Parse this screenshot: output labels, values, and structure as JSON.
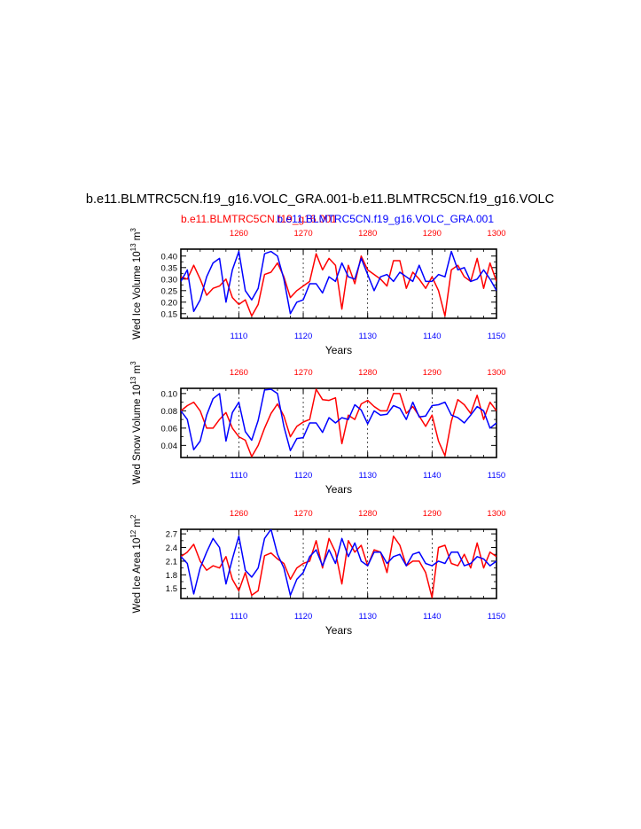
{
  "figure": {
    "title": "b.e11.BLMTRC5CN.f19_g16.VOLC_GRA.001-b.e11.BLMTRC5CN.f19_g16.VOLC",
    "subtitle_left": "b.e11.BLMTRC5CN.f19_g16.001",
    "subtitle_right": "b.e11.BLMTRC5CN.f19_g16.VOLC_GRA.001",
    "colors": {
      "series_a": "#ff0000",
      "series_b": "#0000ff",
      "axes": "#000000"
    }
  },
  "chart_data": [
    {
      "type": "line",
      "ylabel_main": "Wed Ice Volume 10",
      "ylabel_sup": "13",
      "ylabel_unit": " m",
      "ylabel_unit_sup": "3",
      "xlabel": "Years",
      "bottom_axis": {
        "range": [
          1101,
          1150
        ],
        "ticks": [
          "1110",
          "1120",
          "1130",
          "1140",
          "1150"
        ]
      },
      "top_axis": {
        "range": [
          1251,
          1300
        ],
        "ticks": [
          "1260",
          "1270",
          "1280",
          "1290",
          "1300"
        ]
      },
      "ylim": [
        0.13,
        0.43
      ],
      "yticks": [
        "0.15",
        "0.20",
        "0.25",
        "0.30",
        "0.35",
        "0.40"
      ],
      "ytick_values": [
        0.15,
        0.2,
        0.25,
        0.3,
        0.35,
        0.4
      ],
      "grid": "dashed vertical lines at major x ticks",
      "series": [
        {
          "axis": "top",
          "color": "#ff0000",
          "values": [
            0.31,
            0.3,
            0.36,
            0.3,
            0.23,
            0.26,
            0.27,
            0.3,
            0.22,
            0.19,
            0.21,
            0.14,
            0.19,
            0.32,
            0.33,
            0.37,
            0.31,
            0.22,
            0.25,
            0.27,
            0.29,
            0.41,
            0.34,
            0.39,
            0.36,
            0.17,
            0.36,
            0.28,
            0.4,
            0.34,
            0.32,
            0.3,
            0.27,
            0.38,
            0.38,
            0.26,
            0.33,
            0.3,
            0.26,
            0.31,
            0.25,
            0.14,
            0.34,
            0.36,
            0.31,
            0.29,
            0.39,
            0.26,
            0.37,
            0.29
          ]
        },
        {
          "axis": "bottom",
          "color": "#0000ff",
          "values": [
            0.29,
            0.34,
            0.16,
            0.21,
            0.31,
            0.37,
            0.39,
            0.2,
            0.34,
            0.42,
            0.25,
            0.21,
            0.26,
            0.41,
            0.42,
            0.4,
            0.3,
            0.15,
            0.2,
            0.21,
            0.28,
            0.28,
            0.24,
            0.31,
            0.29,
            0.37,
            0.31,
            0.3,
            0.39,
            0.32,
            0.25,
            0.31,
            0.32,
            0.29,
            0.33,
            0.31,
            0.29,
            0.36,
            0.29,
            0.29,
            0.32,
            0.31,
            0.42,
            0.34,
            0.35,
            0.29,
            0.3,
            0.34,
            0.3,
            0.25
          ]
        }
      ]
    },
    {
      "type": "line",
      "ylabel_main": "Wed Snow Volume 10",
      "ylabel_sup": "13",
      "ylabel_unit": " m",
      "ylabel_unit_sup": "3",
      "xlabel": "Years",
      "bottom_axis": {
        "range": [
          1101,
          1150
        ],
        "ticks": [
          "1110",
          "1120",
          "1130",
          "1140",
          "1150"
        ]
      },
      "top_axis": {
        "range": [
          1251,
          1300
        ],
        "ticks": [
          "1260",
          "1270",
          "1280",
          "1290",
          "1300"
        ]
      },
      "ylim": [
        0.026,
        0.106
      ],
      "yticks": [
        "0.04",
        "0.06",
        "0.08",
        "0.10"
      ],
      "ytick_values": [
        0.04,
        0.06,
        0.08,
        0.1
      ],
      "grid": "dashed vertical lines at major x ticks",
      "series": [
        {
          "axis": "top",
          "color": "#ff0000",
          "values": [
            0.08,
            0.086,
            0.09,
            0.08,
            0.06,
            0.06,
            0.07,
            0.078,
            0.06,
            0.05,
            0.046,
            0.027,
            0.04,
            0.06,
            0.077,
            0.088,
            0.074,
            0.05,
            0.062,
            0.067,
            0.07,
            0.105,
            0.093,
            0.092,
            0.095,
            0.042,
            0.075,
            0.07,
            0.088,
            0.092,
            0.085,
            0.08,
            0.08,
            0.1,
            0.1,
            0.077,
            0.085,
            0.074,
            0.062,
            0.075,
            0.045,
            0.028,
            0.068,
            0.093,
            0.087,
            0.077,
            0.098,
            0.07,
            0.09,
            0.08
          ]
        },
        {
          "axis": "bottom",
          "color": "#0000ff",
          "values": [
            0.08,
            0.07,
            0.035,
            0.045,
            0.075,
            0.094,
            0.1,
            0.045,
            0.078,
            0.09,
            0.056,
            0.046,
            0.069,
            0.104,
            0.105,
            0.1,
            0.062,
            0.034,
            0.048,
            0.049,
            0.066,
            0.066,
            0.055,
            0.072,
            0.066,
            0.072,
            0.07,
            0.087,
            0.081,
            0.065,
            0.08,
            0.075,
            0.076,
            0.086,
            0.083,
            0.07,
            0.09,
            0.073,
            0.074,
            0.086,
            0.087,
            0.09,
            0.075,
            0.072,
            0.066,
            0.075,
            0.085,
            0.08,
            0.06,
            0.066
          ]
        }
      ]
    },
    {
      "type": "line",
      "ylabel_main": "Wed Ice Area 10",
      "ylabel_sup": "12",
      "ylabel_unit": " m",
      "ylabel_unit_sup": "2",
      "xlabel": "Years",
      "bottom_axis": {
        "range": [
          1101,
          1150
        ],
        "ticks": [
          "1110",
          "1120",
          "1130",
          "1140",
          "1150"
        ]
      },
      "top_axis": {
        "range": [
          1251,
          1300
        ],
        "ticks": [
          "1260",
          "1270",
          "1280",
          "1290",
          "1300"
        ]
      },
      "ylim": [
        1.28,
        2.8
      ],
      "yticks": [
        "1.5",
        "1.8",
        "2.1",
        "2.4",
        "2.7"
      ],
      "ytick_values": [
        1.5,
        1.8,
        2.1,
        2.4,
        2.7
      ],
      "grid": "dashed vertical lines at major x ticks",
      "series": [
        {
          "axis": "top",
          "color": "#ff0000",
          "values": [
            2.2,
            2.3,
            2.47,
            2.1,
            1.9,
            2.0,
            1.95,
            2.2,
            1.7,
            1.45,
            1.85,
            1.35,
            1.45,
            2.22,
            2.28,
            2.15,
            2.05,
            1.7,
            1.95,
            2.05,
            2.1,
            2.55,
            1.95,
            2.6,
            2.3,
            1.6,
            2.55,
            2.3,
            2.45,
            2.0,
            2.35,
            2.3,
            1.85,
            2.65,
            2.45,
            2.0,
            2.1,
            2.1,
            1.85,
            1.3,
            2.4,
            2.45,
            2.05,
            2.0,
            2.25,
            1.95,
            2.5,
            1.95,
            2.3,
            2.2
          ]
        },
        {
          "axis": "bottom",
          "color": "#0000ff",
          "values": [
            2.2,
            2.05,
            1.38,
            1.95,
            2.3,
            2.6,
            2.4,
            1.6,
            2.15,
            2.65,
            1.9,
            1.75,
            1.95,
            2.6,
            2.8,
            2.25,
            1.95,
            1.35,
            1.7,
            1.85,
            2.2,
            2.35,
            2.0,
            2.35,
            2.05,
            2.6,
            2.2,
            2.5,
            2.1,
            2.0,
            2.3,
            2.3,
            2.05,
            2.2,
            2.25,
            2.0,
            2.25,
            2.3,
            2.05,
            2.0,
            2.1,
            2.05,
            2.3,
            2.3,
            2.0,
            2.05,
            2.2,
            2.15,
            2.0,
            2.1
          ]
        }
      ]
    }
  ]
}
